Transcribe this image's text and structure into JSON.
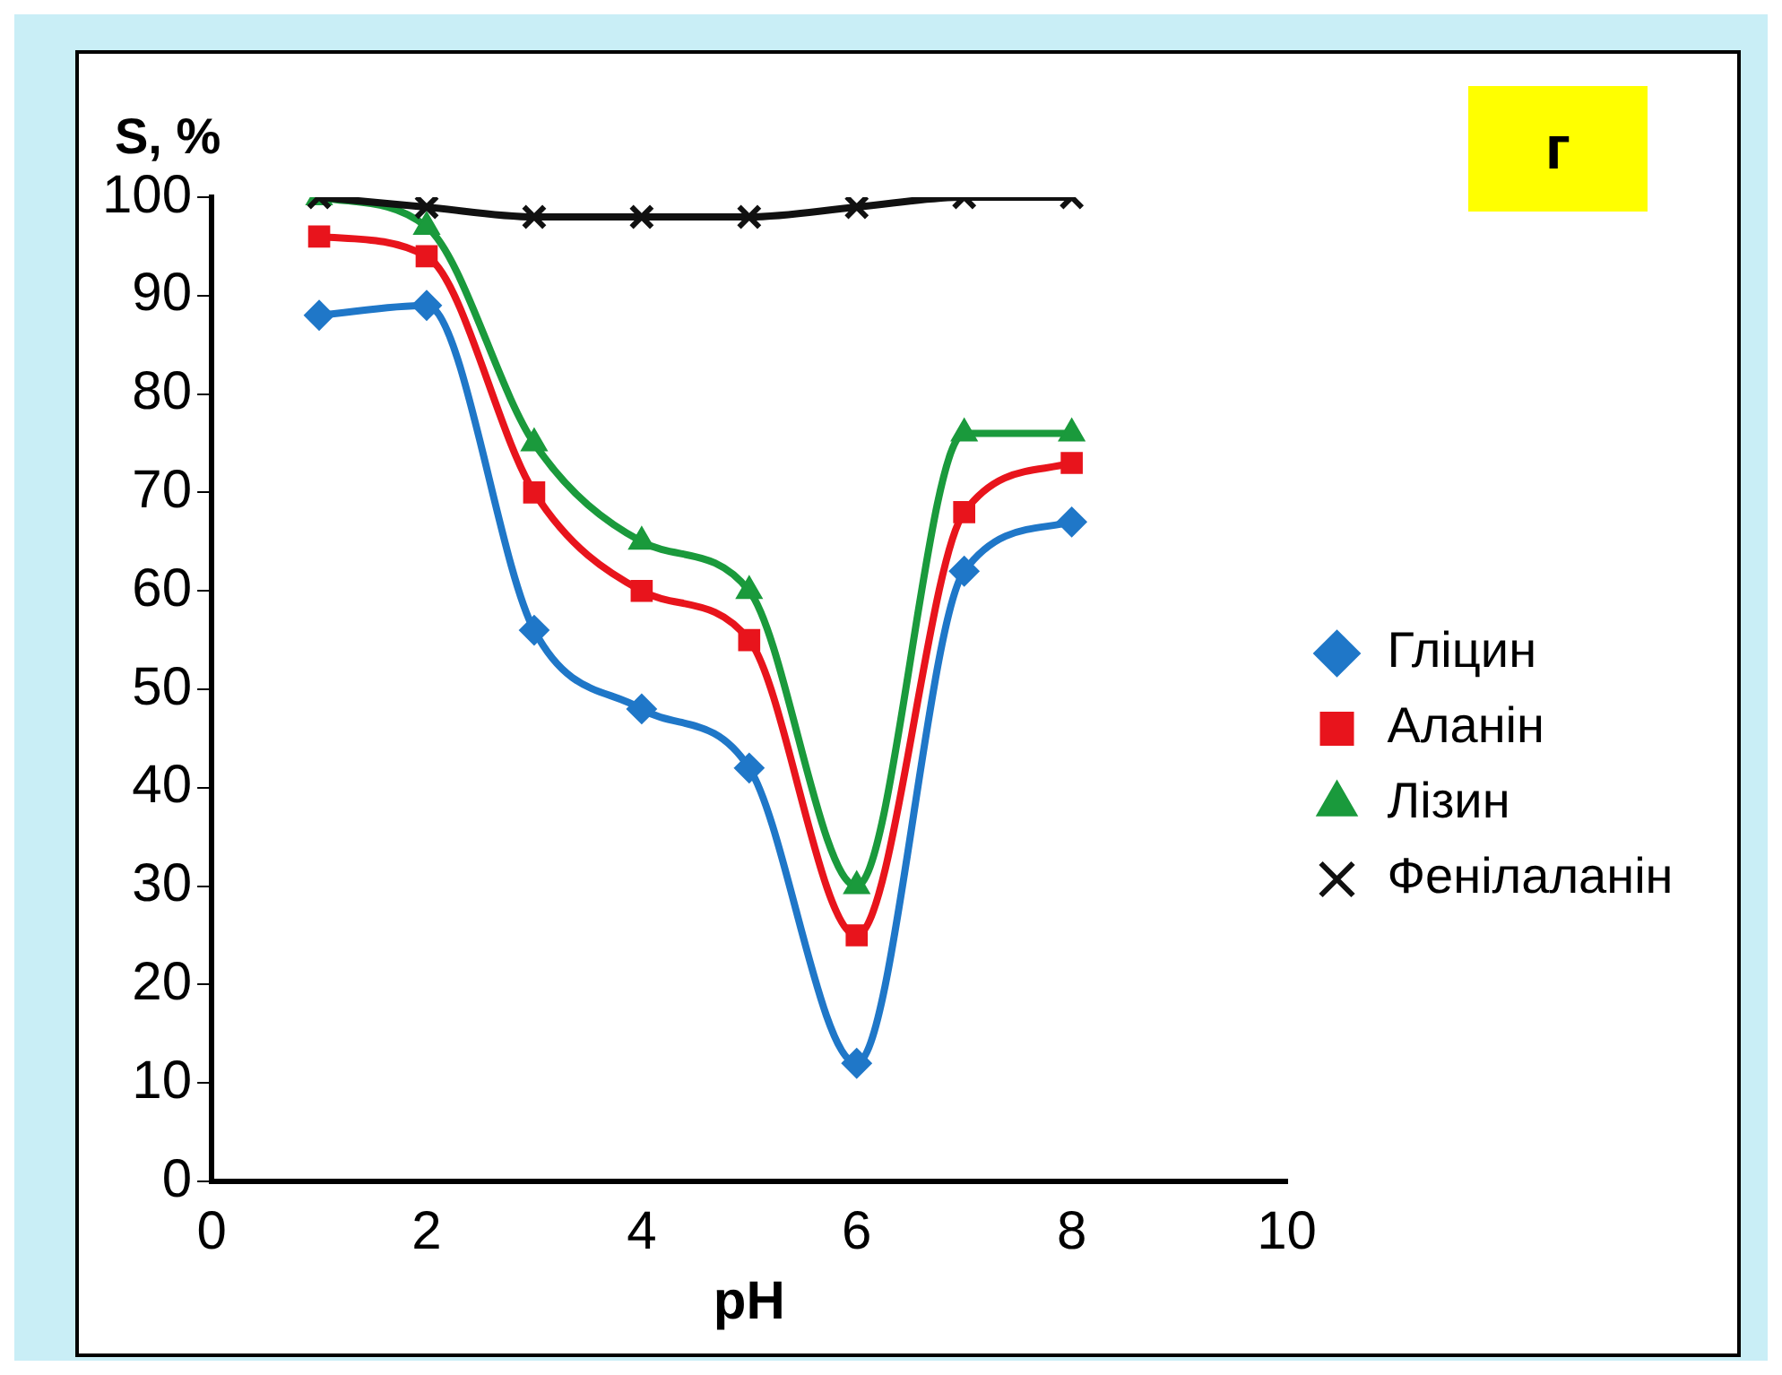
{
  "chart_data": {
    "type": "line",
    "ylabel": "S, %",
    "xlabel": "pH",
    "annotations": [
      "г"
    ],
    "xlim": [
      0,
      10
    ],
    "xticks": [
      0,
      2,
      4,
      6,
      8,
      10
    ],
    "ylim": [
      0,
      100
    ],
    "yticks": [
      0,
      10,
      20,
      30,
      40,
      50,
      60,
      70,
      80,
      90,
      100
    ],
    "grid": false,
    "legend": "right",
    "x": [
      1,
      2,
      3,
      4,
      5,
      6,
      7,
      8
    ],
    "series": [
      {
        "name": "Гліцин",
        "color": "#1f77c8",
        "marker": "diamond",
        "values": [
          88,
          89,
          56,
          48,
          42,
          12,
          62,
          67
        ]
      },
      {
        "name": "Аланін",
        "color": "#e8141c",
        "marker": "square",
        "values": [
          96,
          94,
          70,
          60,
          55,
          25,
          68,
          73
        ]
      },
      {
        "name": "Лізин",
        "color": "#1a9a3c",
        "marker": "triangle",
        "values": [
          100,
          97,
          75,
          65,
          60,
          30,
          76,
          76
        ]
      },
      {
        "name": "Фенілаланін",
        "color": "#111111",
        "marker": "cross",
        "values": [
          100,
          99,
          98,
          98,
          98,
          99,
          100,
          100
        ]
      }
    ]
  }
}
